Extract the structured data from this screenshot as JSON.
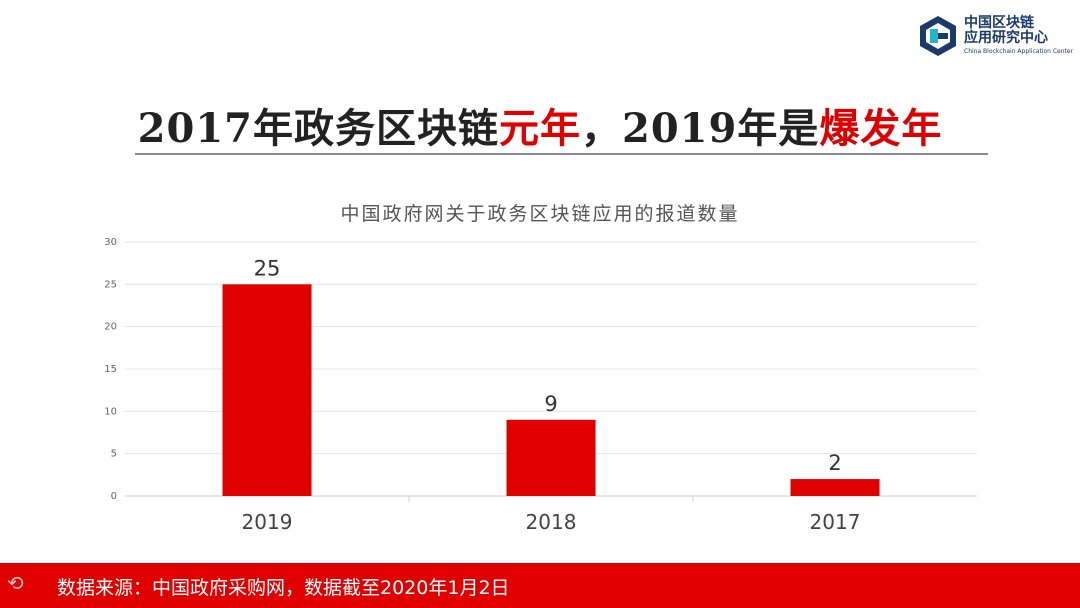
{
  "header": {
    "logo_cn_line1": "中国区块链",
    "logo_cn_line2": "应用研究中心",
    "logo_en": "China Blockchain Application Center"
  },
  "headline": {
    "part1": "2017年政务区块链",
    "part2": "元年",
    "part3": "，2019年是",
    "part4": "爆发年"
  },
  "colors": {
    "accent": "#e10000",
    "logo_blue": "#1b3a6b",
    "logo_teal": "#25b5c9"
  },
  "chart_data": {
    "type": "bar",
    "title": "中国政府网关于政务区块链应用的报道数量",
    "categories": [
      "2019",
      "2018",
      "2017"
    ],
    "values": [
      25,
      9,
      2
    ],
    "data_labels": [
      "25",
      "9",
      "2"
    ],
    "y_ticks": [
      "0",
      "5",
      "10",
      "15",
      "20",
      "25",
      "30"
    ],
    "ylim": [
      0,
      30
    ],
    "grid": true,
    "bar_color": "#e10000",
    "xlabel": "",
    "ylabel": ""
  },
  "footer": {
    "source": "数据来源：中国政府采购网，数据截至2020年1月2日"
  }
}
